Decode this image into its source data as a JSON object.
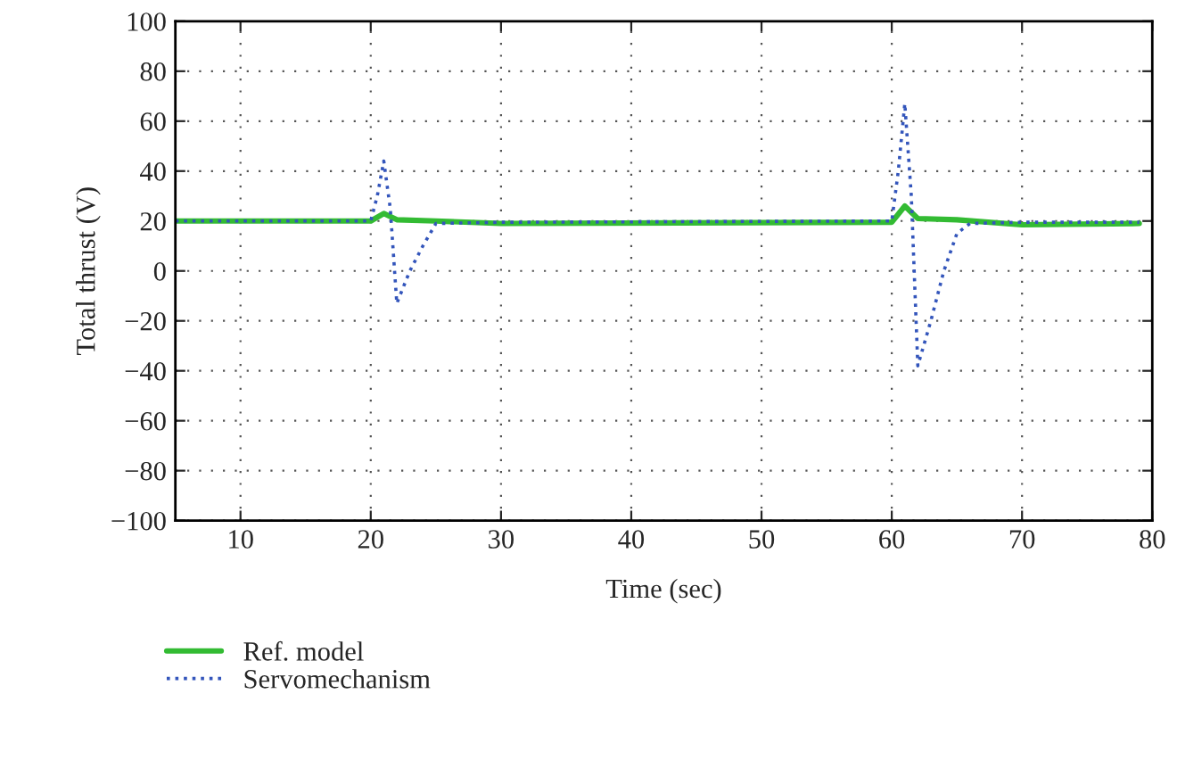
{
  "chart_data": {
    "type": "line",
    "xlabel": "Time (sec)",
    "ylabel": "Total thrust (V)",
    "xlim": [
      5,
      80
    ],
    "xticks": [
      10,
      20,
      30,
      40,
      50,
      60,
      70,
      80
    ],
    "ylim": [
      -100,
      100
    ],
    "yticks": [
      {
        "value": -100,
        "label": "−100"
      },
      {
        "value": -80,
        "label": "−80"
      },
      {
        "value": -60,
        "label": "−60"
      },
      {
        "value": -40,
        "label": "−40"
      },
      {
        "value": -20,
        "label": "−20"
      },
      0,
      20,
      40,
      60,
      80,
      100
    ],
    "grid": true,
    "legend": "bottom",
    "series": [
      {
        "name": "Ref. model",
        "color": "#33bb33",
        "line_style": "solid",
        "x": [
          5,
          20,
          21,
          22,
          25,
          30,
          60,
          61,
          62,
          65,
          70,
          79
        ],
        "values": [
          20,
          20,
          23,
          20.5,
          20,
          19,
          19.5,
          26,
          21,
          20.5,
          18.5,
          19
        ]
      },
      {
        "name": "Servomechanism",
        "color": "#3355bb",
        "line_style": "dotted",
        "x": [
          5,
          20,
          20.5,
          21,
          21.5,
          22,
          23,
          24,
          25,
          30,
          60,
          60.5,
          61,
          61.5,
          62,
          63,
          64,
          65,
          66,
          70,
          79
        ],
        "values": [
          20,
          20,
          30,
          44,
          25,
          -13,
          0,
          10,
          19,
          19.5,
          20,
          40,
          67,
          30,
          -38,
          -20,
          0,
          15,
          19,
          19.5,
          19.5
        ]
      }
    ]
  }
}
